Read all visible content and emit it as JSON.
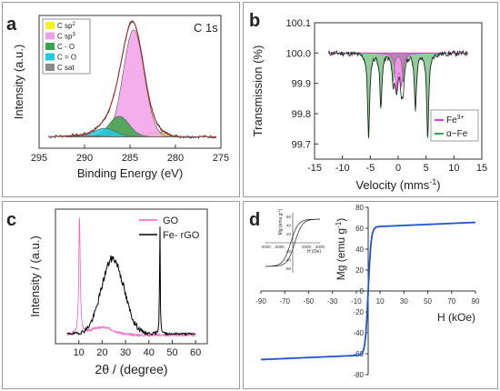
{
  "chart_data": [
    {
      "panel_letter": "a",
      "type": "line",
      "annotation": "C 1s",
      "xlabel": "Binding Energy (eV)",
      "ylabel": "Intensity (a.u.)",
      "xlim": [
        295,
        275
      ],
      "x_ticks": [
        295,
        290,
        285,
        280,
        275
      ],
      "legend": {
        "position": "top-left"
      },
      "series": [
        {
          "name": "C sp2",
          "type": "area",
          "color": "#f4ee38",
          "center": 282.0,
          "height": 0.04,
          "width": 1.0
        },
        {
          "name": "C sp3",
          "type": "area",
          "color": "#f2a0e8",
          "center": 284.6,
          "height": 0.89,
          "width": 1.15
        },
        {
          "name": "C - O",
          "type": "area",
          "color": "#38a648",
          "center": 286.2,
          "height": 0.17,
          "width": 1.1
        },
        {
          "name": "C = O",
          "type": "area",
          "color": "#21c9e5",
          "center": 287.8,
          "height": 0.07,
          "width": 1.2
        },
        {
          "name": "C  sat",
          "type": "area",
          "color": "#8a8a8a",
          "center": 290.5,
          "height": 0.01,
          "width": 1.6
        },
        {
          "type": "line",
          "color": "#000000",
          "baseline": 0.02
        }
      ]
    },
    {
      "panel_letter": "b",
      "type": "line",
      "xlabel": "Velocity (mms",
      "xlabel_sup": "-1",
      "xlabel_end": ")",
      "ylabel": "Transmission (%)",
      "xlim": [
        -15,
        15
      ],
      "ylim": [
        99.65,
        100.1
      ],
      "x_ticks": [
        -15,
        -10,
        -5,
        0,
        5,
        10,
        15
      ],
      "x_tick_labels": [
        "-15",
        "-10",
        "-5",
        "0",
        "5",
        "10",
        "15"
      ],
      "y_ticks": [
        99.7,
        99.8,
        99.9,
        100.0,
        100.1
      ],
      "y_tick_labels": [
        "99.7",
        "99.8",
        "99.9",
        "100.0",
        "100.1"
      ],
      "legend": {
        "position": "bottom-right"
      },
      "series": [
        {
          "name": "Fe",
          "name_sup": "3+",
          "color": "#e040d0",
          "peaks": [
            [
              -0.3,
              99.885
            ],
            [
              0.6,
              99.9
            ]
          ]
        },
        {
          "name": "α−Fe",
          "color": "#38a648",
          "peaks": [
            [
              -5.3,
              99.72
            ],
            [
              -3.1,
              99.82
            ],
            [
              -0.9,
              99.91
            ],
            [
              0.9,
              99.91
            ],
            [
              3.1,
              99.82
            ],
            [
              5.3,
              99.72
            ]
          ]
        },
        {
          "type": "line",
          "color": "#000000",
          "baseline": 100.0
        }
      ]
    },
    {
      "panel_letter": "c",
      "type": "line",
      "xlabel": "2θ / (degree)",
      "ylabel": "Intensity / (a.u.)",
      "xlim": [
        0,
        65
      ],
      "x_ticks": [
        10,
        20,
        30,
        40,
        50,
        60
      ],
      "legend": {
        "position": "top-right"
      },
      "series": [
        {
          "name": "GO",
          "color": "#f060c0",
          "peak": [
            10.3,
            0.95
          ],
          "baseline": 0.04
        },
        {
          "name": "Fe- rGO",
          "color": "#000000",
          "broad_peak": [
            24.5,
            0.6
          ],
          "sharp_peak": [
            44.7,
            0.95
          ],
          "baseline": 0.05
        }
      ]
    },
    {
      "panel_letter": "d",
      "type": "line",
      "xlabel": "H (kOe)",
      "ylabel": "Mg (emu g",
      "ylabel_sup": "-1",
      "ylabel_end": ")",
      "xlim": [
        -90,
        90
      ],
      "ylim": [
        -80,
        80
      ],
      "x_ticks": [
        -90,
        -70,
        -50,
        -30,
        -10,
        10,
        30,
        50,
        70,
        90
      ],
      "y_ticks": [
        -80,
        -60,
        -40,
        -20,
        0,
        20,
        40,
        60,
        80
      ],
      "series": [
        {
          "color": "#1f55d0",
          "ms": 61.2,
          "h_half": 2.5
        }
      ],
      "inset": {
        "xlabel": "H (Oe)",
        "ylabel": "Mg (emu g",
        "ylabel_sup": "-1",
        "ylabel_end": ")",
        "xlim": [
          -4000,
          4000
        ],
        "x_ticks": [
          -4000,
          -2000,
          2000,
          4000
        ],
        "x_tick_labels": [
          "-4000",
          "-2000",
          "2000",
          "4000"
        ],
        "y_ticks": [
          60,
          40,
          20,
          -20,
          -40,
          -60
        ],
        "y_tick_labels": [
          "60",
          "40",
          "20",
          "-20",
          "-40",
          "-60"
        ],
        "coercivity": 300
      }
    }
  ]
}
